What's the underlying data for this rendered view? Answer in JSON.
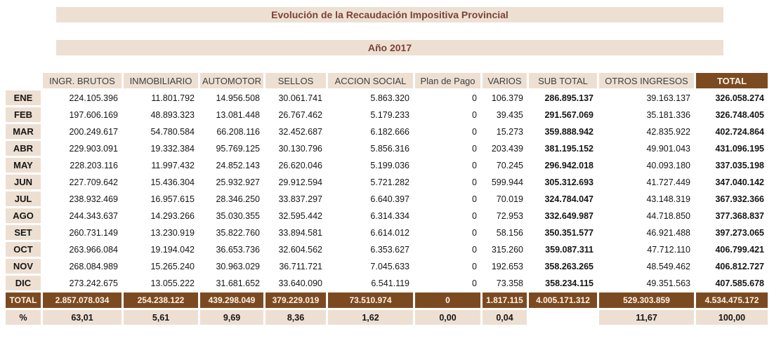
{
  "colors": {
    "header_brown": "#7C4A21",
    "cell_beige": "#EDE0D2",
    "title_text": "#7C4237"
  },
  "chart_data": {
    "type": "table",
    "title": "Evolución de la Recaudación Impositiva Provincial",
    "subtitle": "Año 2017",
    "columns": [
      "INGR. BRUTOS",
      "INMOBILIARIO",
      "AUTOMOTOR",
      "SELLOS",
      "ACCION SOCIAL",
      "Plan de Pago",
      "VARIOS",
      "SUB TOTAL",
      "OTROS INGRESOS",
      "TOTAL"
    ],
    "row_labels": [
      "ENE",
      "FEB",
      "MAR",
      "ABR",
      "MAY",
      "JUN",
      "JUL",
      "AGO",
      "SET",
      "OCT",
      "NOV",
      "DIC"
    ],
    "rows": [
      [
        "224.105.396",
        "11.801.792",
        "14.956.508",
        "30.061.741",
        "5.863.320",
        "0",
        "106.379",
        "286.895.137",
        "39.163.137",
        "326.058.274"
      ],
      [
        "197.606.169",
        "48.893.323",
        "13.081.448",
        "26.767.462",
        "5.179.233",
        "0",
        "39.435",
        "291.567.069",
        "35.181.336",
        "326.748.405"
      ],
      [
        "200.249.617",
        "54.780.584",
        "66.208.116",
        "32.452.687",
        "6.182.666",
        "0",
        "15.273",
        "359.888.942",
        "42.835.922",
        "402.724.864"
      ],
      [
        "229.903.091",
        "19.332.384",
        "95.769.125",
        "30.130.796",
        "5.856.316",
        "0",
        "203.439",
        "381.195.152",
        "49.901.043",
        "431.096.195"
      ],
      [
        "228.203.116",
        "11.997.432",
        "24.852.143",
        "26.620.046",
        "5.199.036",
        "0",
        "70.245",
        "296.942.018",
        "40.093.180",
        "337.035.198"
      ],
      [
        "227.709.642",
        "15.436.304",
        "25.932.927",
        "29.912.594",
        "5.721.282",
        "0",
        "599.944",
        "305.312.693",
        "41.727.449",
        "347.040.142"
      ],
      [
        "238.932.469",
        "16.957.615",
        "28.346.250",
        "33.837.297",
        "6.640.397",
        "0",
        "70.019",
        "324.784.047",
        "43.148.319",
        "367.932.366"
      ],
      [
        "244.343.637",
        "14.293.266",
        "35.030.355",
        "32.595.442",
        "6.314.334",
        "0",
        "72.953",
        "332.649.987",
        "44.718.850",
        "377.368.837"
      ],
      [
        "260.731.149",
        "13.230.919",
        "35.822.760",
        "33.894.581",
        "6.614.012",
        "0",
        "58.156",
        "350.351.577",
        "46.921.488",
        "397.273.065"
      ],
      [
        "263.966.084",
        "19.194.042",
        "36.653.736",
        "32.604.562",
        "6.353.627",
        "0",
        "315.260",
        "359.087.311",
        "47.712.110",
        "406.799.421"
      ],
      [
        "268.084.989",
        "15.265.240",
        "30.963.029",
        "36.711.721",
        "7.045.633",
        "0",
        "192.653",
        "358.263.265",
        "48.549.462",
        "406.812.727"
      ],
      [
        "273.242.675",
        "13.055.222",
        "31.681.652",
        "33.640.090",
        "6.541.119",
        "0",
        "73.358",
        "358.234.115",
        "49.351.563",
        "407.585.678"
      ]
    ],
    "total_row": {
      "label": "TOTAL",
      "values": [
        "2.857.078.034",
        "254.238.122",
        "439.298.049",
        "379.229.019",
        "73.510.974",
        "0",
        "1.817.115",
        "4.005.171.312",
        "529.303.859",
        "4.534.475.172"
      ]
    },
    "percent_row": {
      "label": "%",
      "values": [
        "63,01",
        "5,61",
        "9,69",
        "8,36",
        "1,62",
        "0,00",
        "0,04",
        "",
        "11,67",
        "100,00"
      ]
    }
  }
}
